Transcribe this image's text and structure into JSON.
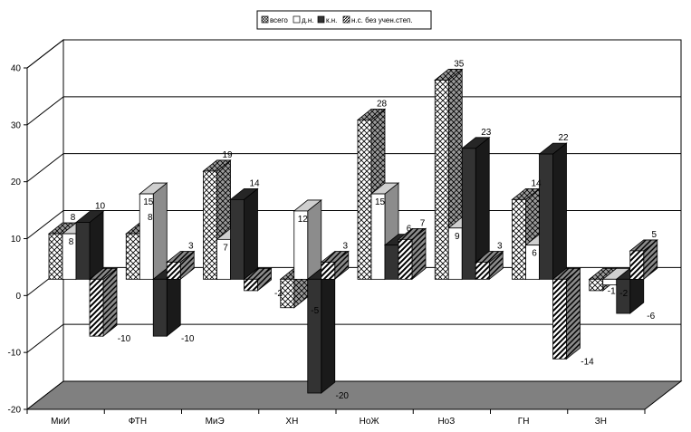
{
  "chart_data": {
    "type": "bar",
    "title": "",
    "xlabel": "",
    "ylabel": "",
    "ylim": [
      -20,
      40
    ],
    "yticks": [
      -20,
      -10,
      0,
      10,
      20,
      30,
      40
    ],
    "grid": true,
    "legend_position": "top-center",
    "categories": [
      "МиИ",
      "ФТН",
      "МиЭ",
      "ХН",
      "НоЖ",
      "НоЗ",
      "ГН",
      "ЗН"
    ],
    "series": [
      {
        "name": "всего",
        "values": [
          8,
          8,
          19,
          -5,
          28,
          35,
          14,
          -2
        ],
        "pattern": "crosshatch",
        "color": "#ffffff"
      },
      {
        "name": "д.н.",
        "values": [
          8,
          15,
          7,
          12,
          15,
          9,
          6,
          -1
        ],
        "pattern": "solid",
        "color": "#ffffff"
      },
      {
        "name": "к.н.",
        "values": [
          10,
          -10,
          14,
          -20,
          6,
          23,
          22,
          -6
        ],
        "pattern": "solid",
        "color": "#333333"
      },
      {
        "name": "н.с. без учен.степ.",
        "values": [
          -10,
          3,
          -2,
          3,
          7,
          3,
          -14,
          5
        ],
        "pattern": "diagonal",
        "color": "#ffffff"
      }
    ],
    "colors": {
      "floor": "#808080",
      "bar_dark": "#333333",
      "bar_light": "#ffffff"
    }
  }
}
